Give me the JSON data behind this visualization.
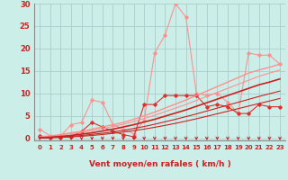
{
  "bg_color": "#cceee8",
  "grid_color": "#aacccc",
  "xlabel": "Vent moyen/en rafales ( km/h )",
  "xlim": [
    -0.5,
    23.5
  ],
  "ylim": [
    -0.5,
    30
  ],
  "yticks": [
    0,
    5,
    10,
    15,
    20,
    25,
    30
  ],
  "xticks": [
    0,
    1,
    2,
    3,
    4,
    5,
    6,
    7,
    8,
    9,
    10,
    11,
    12,
    13,
    14,
    15,
    16,
    17,
    18,
    19,
    20,
    21,
    22,
    23
  ],
  "x": [
    0,
    1,
    2,
    3,
    4,
    5,
    6,
    7,
    8,
    9,
    10,
    11,
    12,
    13,
    14,
    15,
    16,
    17,
    18,
    19,
    20,
    21,
    22,
    23
  ],
  "series": [
    {
      "y": [
        2.0,
        0.5,
        0.5,
        3.0,
        3.5,
        8.5,
        8.0,
        3.0,
        2.0,
        1.0,
        4.0,
        19.0,
        23.0,
        30.0,
        27.0,
        10.0,
        9.5,
        10.0,
        8.0,
        5.5,
        19.0,
        18.5,
        18.5,
        16.5
      ],
      "color": "#ff9090",
      "lw": 0.8,
      "marker": "D",
      "ms": 1.8
    },
    {
      "y": [
        0.5,
        0.2,
        0.2,
        0.4,
        1.5,
        3.5,
        2.5,
        1.5,
        0.8,
        0.3,
        7.5,
        7.5,
        9.5,
        9.5,
        9.5,
        9.5,
        7.0,
        7.5,
        7.0,
        5.5,
        5.5,
        7.5,
        7.0,
        7.0
      ],
      "color": "#dd3030",
      "lw": 0.8,
      "marker": "D",
      "ms": 1.8
    },
    {
      "y": [
        0.3,
        0.5,
        0.8,
        1.2,
        1.5,
        2.0,
        2.5,
        3.0,
        3.5,
        4.2,
        5.0,
        5.8,
        6.7,
        7.6,
        8.5,
        9.5,
        10.5,
        11.5,
        12.5,
        13.5,
        14.5,
        15.2,
        15.8,
        16.5
      ],
      "color": "#ff9090",
      "lw": 1.0,
      "marker": null,
      "ms": 0
    },
    {
      "y": [
        0.2,
        0.4,
        0.7,
        1.0,
        1.3,
        1.7,
        2.1,
        2.6,
        3.1,
        3.7,
        4.4,
        5.1,
        5.9,
        6.7,
        7.5,
        8.4,
        9.3,
        10.2,
        11.1,
        12.0,
        12.9,
        13.8,
        14.5,
        15.2
      ],
      "color": "#ff9090",
      "lw": 0.8,
      "marker": null,
      "ms": 0
    },
    {
      "y": [
        0.1,
        0.2,
        0.4,
        0.6,
        0.9,
        1.2,
        1.6,
        2.0,
        2.5,
        3.0,
        3.6,
        4.2,
        4.9,
        5.6,
        6.3,
        7.1,
        7.9,
        8.7,
        9.5,
        10.3,
        11.1,
        11.9,
        12.5,
        13.2
      ],
      "color": "#cc2020",
      "lw": 1.2,
      "marker": null,
      "ms": 0
    },
    {
      "y": [
        0.1,
        0.15,
        0.25,
        0.4,
        0.6,
        0.85,
        1.1,
        1.4,
        1.75,
        2.15,
        2.6,
        3.1,
        3.65,
        4.2,
        4.8,
        5.4,
        6.05,
        6.7,
        7.35,
        8.0,
        8.65,
        9.3,
        9.9,
        10.5
      ],
      "color": "#cc2020",
      "lw": 0.8,
      "marker": null,
      "ms": 0
    },
    {
      "y": [
        0.05,
        0.1,
        0.18,
        0.28,
        0.42,
        0.6,
        0.82,
        1.07,
        1.35,
        1.67,
        2.02,
        2.42,
        2.85,
        3.3,
        3.8,
        4.32,
        4.87,
        5.44,
        6.0,
        6.58,
        7.15,
        7.72,
        8.28,
        8.85
      ],
      "color": "#cc2020",
      "lw": 0.8,
      "marker": null,
      "ms": 0
    }
  ],
  "arrow_color": "#cc2020",
  "tick_label_color": "#cc2020",
  "left_spine_color": "#888888"
}
